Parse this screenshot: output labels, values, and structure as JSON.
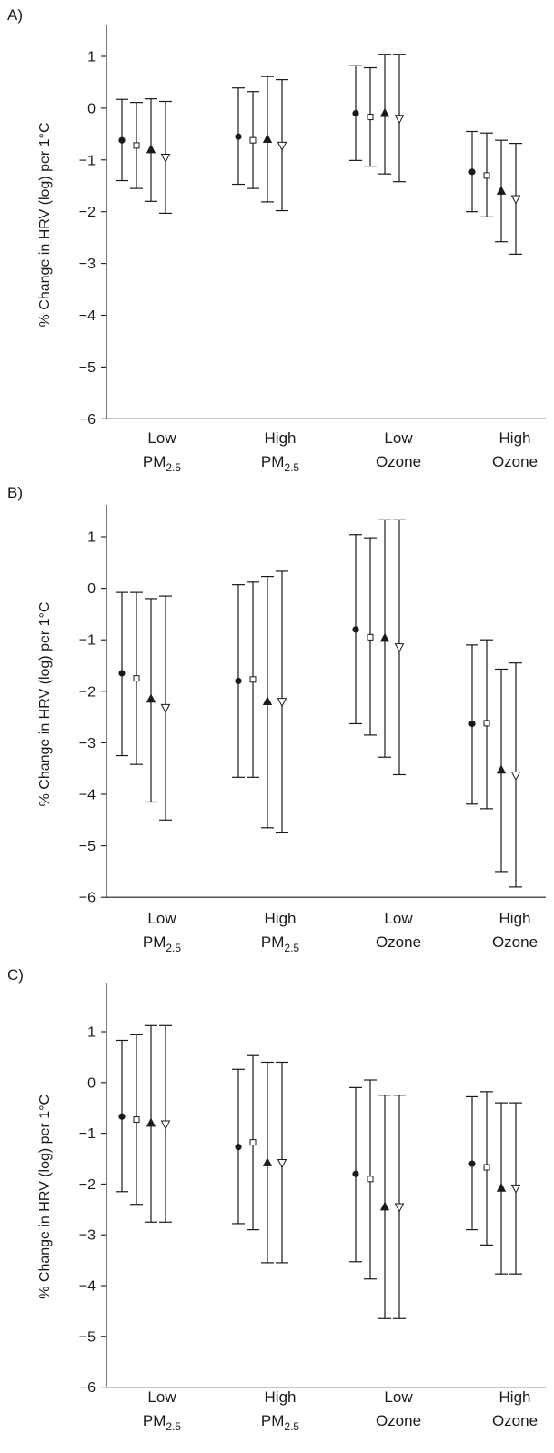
{
  "chart_data": [
    {
      "type": "scatter",
      "panel_label": "A)",
      "ylabel": "% Change in HRV (log) per 1°C",
      "ylim": [
        -6,
        1.5
      ],
      "yticks": [
        1,
        0,
        -1,
        -2,
        -3,
        -4,
        -5,
        -6
      ],
      "categories": [
        {
          "line1": "Low",
          "line2_main": "PM",
          "line2_sub": "2.5"
        },
        {
          "line1": "High",
          "line2_main": "PM",
          "line2_sub": "2.5"
        },
        {
          "line1": "Low",
          "line2_main": "Ozone",
          "line2_sub": ""
        },
        {
          "line1": "High",
          "line2_main": "Ozone",
          "line2_sub": ""
        }
      ],
      "series": [
        {
          "marker": "filled-circle",
          "points": [
            {
              "y": -0.62,
              "low": -1.4,
              "high": 0.17
            },
            {
              "y": -0.55,
              "low": -1.47,
              "high": 0.39
            },
            {
              "y": -0.1,
              "low": -1.01,
              "high": 0.82
            },
            {
              "y": -1.23,
              "low": -2.0,
              "high": -0.45
            }
          ]
        },
        {
          "marker": "open-square",
          "points": [
            {
              "y": -0.72,
              "low": -1.55,
              "high": 0.11
            },
            {
              "y": -0.62,
              "low": -1.55,
              "high": 0.32
            },
            {
              "y": -0.17,
              "low": -1.12,
              "high": 0.78
            },
            {
              "y": -1.3,
              "low": -2.1,
              "high": -0.48
            }
          ]
        },
        {
          "marker": "filled-triangle-up",
          "points": [
            {
              "y": -0.8,
              "low": -1.8,
              "high": 0.18
            },
            {
              "y": -0.6,
              "low": -1.81,
              "high": 0.61
            },
            {
              "y": -0.1,
              "low": -1.27,
              "high": 1.04
            },
            {
              "y": -1.6,
              "low": -2.58,
              "high": -0.62
            }
          ]
        },
        {
          "marker": "open-triangle-down",
          "points": [
            {
              "y": -0.95,
              "low": -2.03,
              "high": 0.13
            },
            {
              "y": -0.72,
              "low": -1.98,
              "high": 0.55
            },
            {
              "y": -0.2,
              "low": -1.42,
              "high": 1.04
            },
            {
              "y": -1.75,
              "low": -2.82,
              "high": -0.68
            }
          ]
        }
      ]
    },
    {
      "type": "scatter",
      "panel_label": "B)",
      "ylabel": "% Change in HRV (log) per 1°C",
      "ylim": [
        -6,
        1.5
      ],
      "yticks": [
        1,
        0,
        -1,
        -2,
        -3,
        -4,
        -5,
        -6
      ],
      "categories": [
        {
          "line1": "Low",
          "line2_main": "PM",
          "line2_sub": "2.5"
        },
        {
          "line1": "High",
          "line2_main": "PM",
          "line2_sub": "2.5"
        },
        {
          "line1": "Low",
          "line2_main": "Ozone",
          "line2_sub": ""
        },
        {
          "line1": "High",
          "line2_main": "Ozone",
          "line2_sub": ""
        }
      ],
      "series": [
        {
          "marker": "filled-circle",
          "points": [
            {
              "y": -1.65,
              "low": -3.25,
              "high": -0.08
            },
            {
              "y": -1.8,
              "low": -3.67,
              "high": 0.07
            },
            {
              "y": -0.8,
              "low": -2.63,
              "high": 1.04
            },
            {
              "y": -2.63,
              "low": -4.19,
              "high": -1.1
            }
          ]
        },
        {
          "marker": "open-square",
          "points": [
            {
              "y": -1.75,
              "low": -3.42,
              "high": -0.08
            },
            {
              "y": -1.77,
              "low": -3.67,
              "high": 0.12
            },
            {
              "y": -0.95,
              "low": -2.85,
              "high": 0.98
            },
            {
              "y": -2.62,
              "low": -4.28,
              "high": -1.0
            }
          ]
        },
        {
          "marker": "filled-triangle-up",
          "points": [
            {
              "y": -2.15,
              "low": -4.15,
              "high": -0.2
            },
            {
              "y": -2.2,
              "low": -4.65,
              "high": 0.23
            },
            {
              "y": -0.97,
              "low": -3.28,
              "high": 1.33
            },
            {
              "y": -3.53,
              "low": -5.5,
              "high": -1.57
            }
          ]
        },
        {
          "marker": "open-triangle-down",
          "points": [
            {
              "y": -2.32,
              "low": -4.5,
              "high": -0.15
            },
            {
              "y": -2.2,
              "low": -4.75,
              "high": 0.33
            },
            {
              "y": -1.14,
              "low": -3.62,
              "high": 1.33
            },
            {
              "y": -3.63,
              "low": -5.8,
              "high": -1.45
            }
          ]
        }
      ]
    },
    {
      "type": "scatter",
      "panel_label": "C)",
      "ylabel": "% Change in HRV (log) per 1°C",
      "ylim": [
        -6,
        1.5
      ],
      "yticks": [
        1,
        0,
        -1,
        -2,
        -3,
        -4,
        -5,
        -6
      ],
      "categories": [
        {
          "line1": "Low",
          "line2_main": "PM",
          "line2_sub": "2.5"
        },
        {
          "line1": "High",
          "line2_main": "PM",
          "line2_sub": "2.5"
        },
        {
          "line1": "Low",
          "line2_main": "Ozone",
          "line2_sub": ""
        },
        {
          "line1": "High",
          "line2_main": "Ozone",
          "line2_sub": ""
        }
      ],
      "series": [
        {
          "marker": "filled-circle",
          "points": [
            {
              "y": -0.67,
              "low": -2.15,
              "high": 0.83
            },
            {
              "y": -1.27,
              "low": -2.78,
              "high": 0.26
            },
            {
              "y": -1.8,
              "low": -3.53,
              "high": -0.1
            },
            {
              "y": -1.6,
              "low": -2.9,
              "high": -0.28
            }
          ]
        },
        {
          "marker": "open-square",
          "points": [
            {
              "y": -0.73,
              "low": -2.4,
              "high": 0.94
            },
            {
              "y": -1.18,
              "low": -2.9,
              "high": 0.53
            },
            {
              "y": -1.9,
              "low": -3.87,
              "high": 0.05
            },
            {
              "y": -1.67,
              "low": -3.2,
              "high": -0.18
            }
          ]
        },
        {
          "marker": "filled-triangle-up",
          "points": [
            {
              "y": -0.8,
              "low": -2.75,
              "high": 1.12
            },
            {
              "y": -1.58,
              "low": -3.55,
              "high": 0.4
            },
            {
              "y": -2.45,
              "low": -4.65,
              "high": -0.25
            },
            {
              "y": -2.08,
              "low": -3.77,
              "high": -0.4
            }
          ]
        },
        {
          "marker": "open-triangle-down",
          "points": [
            {
              "y": -0.82,
              "low": -2.75,
              "high": 1.12
            },
            {
              "y": -1.58,
              "low": -3.55,
              "high": 0.4
            },
            {
              "y": -2.45,
              "low": -4.65,
              "high": -0.25
            },
            {
              "y": -2.08,
              "low": -3.77,
              "high": -0.4
            }
          ]
        }
      ]
    }
  ]
}
